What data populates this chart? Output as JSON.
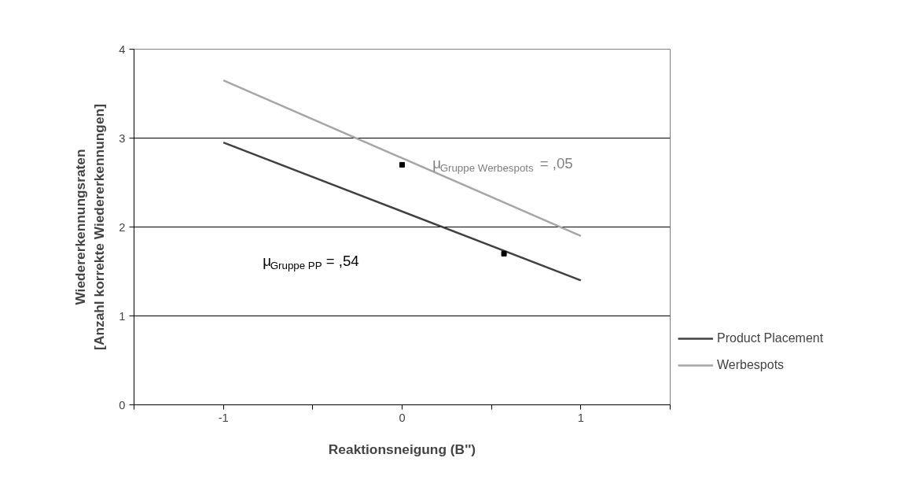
{
  "chart_data": {
    "type": "line",
    "xlabel": "Reaktionsneigung (B'')",
    "ylabel": "Wiedererkennungsraten\n[Anzahl korrekte Wiedererkennungen]",
    "xlim": [
      -1.5,
      1.5
    ],
    "xticks": [
      {
        "value": -1.5,
        "label": null
      },
      -1,
      {
        "value": -0.5,
        "label": null
      },
      0,
      {
        "value": 0.5,
        "label": null
      },
      1,
      {
        "value": 1.5,
        "label": null
      }
    ],
    "ylim": [
      0,
      4
    ],
    "yticks": [
      0,
      1,
      2,
      3,
      4
    ],
    "grid": "y",
    "legend": "right",
    "marker": "none",
    "line_style": "solid",
    "series": [
      {
        "name": "Product Placement",
        "color": "#404040",
        "x": [
          -1,
          1
        ],
        "values": [
          2.95,
          1.4
        ]
      },
      {
        "name": "Werbespots",
        "color": "#a6a6a6",
        "x": [
          -1,
          1
        ],
        "values": [
          3.65,
          1.9
        ]
      },
      {
        "type": "scatter",
        "marker": "square",
        "color": "#000000",
        "x": [
          0,
          0.57
        ],
        "values": [
          2.7,
          1.7
        ]
      }
    ],
    "annotations": [
      "μ$_{Gruppe Werbespots}$ = ,05",
      "μ$_{Gruppe PP}$ = ,54"
    ]
  }
}
